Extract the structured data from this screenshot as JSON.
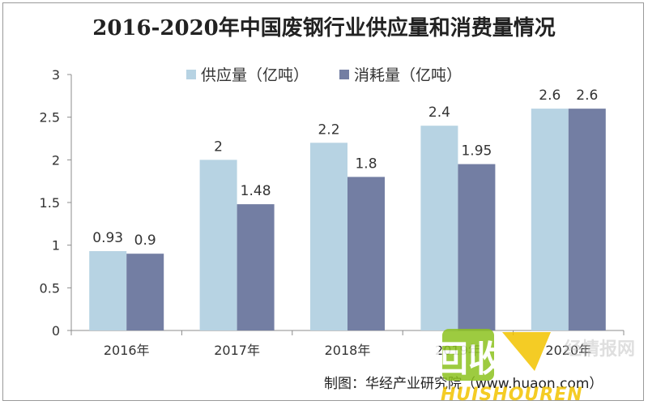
{
  "chart_data": {
    "type": "bar",
    "title": "2016-2020年中国废钢行业供应量和消费量情况",
    "categories": [
      "2016年",
      "2017年",
      "2018年",
      "2019年",
      "2020年"
    ],
    "series": [
      {
        "name": "供应量（亿吨）",
        "values": [
          0.93,
          2,
          2.2,
          2.4,
          2.6
        ],
        "labels": [
          "0.93",
          "2",
          "2.2",
          "2.4",
          "2.6"
        ],
        "color": "#b7d3e3"
      },
      {
        "name": "消耗量（亿吨）",
        "values": [
          0.9,
          1.48,
          1.8,
          1.95,
          2.6
        ],
        "labels": [
          "0.9",
          "1.48",
          "1.8",
          "1.95",
          "2.6"
        ],
        "color": "#737ea3"
      }
    ],
    "ylim": [
      0,
      3
    ],
    "yticks": [
      "0",
      "0.5",
      "1",
      "1.5",
      "2",
      "2.5",
      "3"
    ],
    "ytick_values": [
      0,
      0.5,
      1,
      1.5,
      2,
      2.5,
      3
    ],
    "xlabel": "",
    "ylabel": "",
    "grid": false,
    "legend_position": "top"
  },
  "source_note": "制图：华经产业研究院（www.huaon.com）",
  "watermark": {
    "logo_text": "回收",
    "site_text": "HUISHOUREN",
    "partial_text": "经情报网",
    "colors": {
      "green": "#8dc21f",
      "yellow": "#f3c400",
      "gray": "#b9b9b9"
    }
  }
}
